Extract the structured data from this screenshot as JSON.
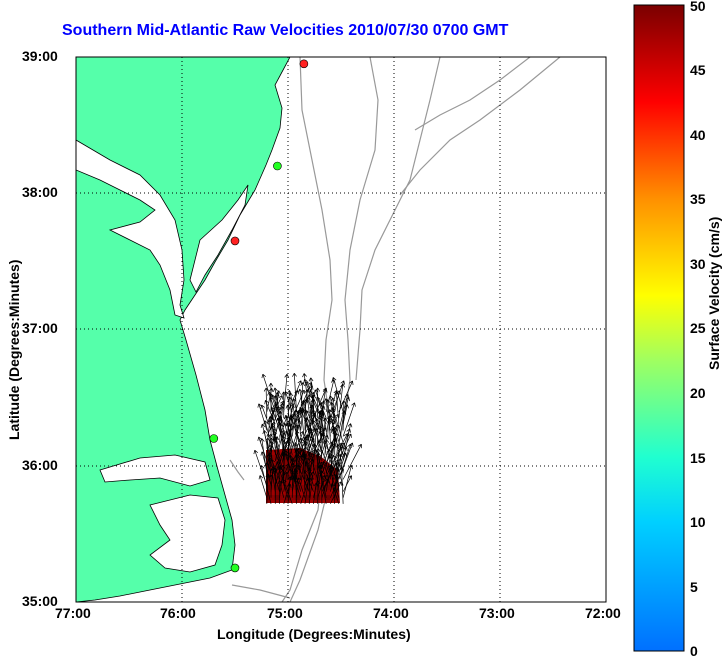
{
  "title": "Southern Mid-Atlantic Raw Velocities 2010/07/30 0700 GMT",
  "x_axis": {
    "label": "Longitude (Degrees:Minutes)",
    "ticks": [
      "77:00",
      "76:00",
      "75:00",
      "74:00",
      "73:00",
      "72:00"
    ]
  },
  "y_axis": {
    "label": "Latitude (Degrees:Minutes)",
    "ticks": [
      "39:00",
      "38:00",
      "37:00",
      "36:00",
      "35:00"
    ]
  },
  "colorbar": {
    "label": "Surface Velocity (cm/s)",
    "ticks": [
      "50",
      "45",
      "40",
      "35",
      "30",
      "25",
      "20",
      "15",
      "10",
      "5",
      "0"
    ],
    "min": 0,
    "max": 50
  },
  "map": {
    "extent": {
      "lon_min": -77.0,
      "lon_max": -72.0,
      "lat_min": 35.0,
      "lat_max": 39.0
    },
    "grid": "dotted",
    "land_color": "#55ffaa",
    "stations": [
      {
        "lon": -74.85,
        "lat": 38.95,
        "color": "#ff2222"
      },
      {
        "lon": -75.1,
        "lat": 38.2,
        "color": "#22ff22"
      },
      {
        "lon": -75.5,
        "lat": 37.65,
        "color": "#ff2222"
      },
      {
        "lon": -75.7,
        "lat": 36.2,
        "color": "#22ff22"
      },
      {
        "lon": -75.5,
        "lat": 35.25,
        "color": "#22ff22"
      }
    ],
    "velocity_field": {
      "lon_min": -75.2,
      "lon_max": -74.45,
      "lat_min": 35.72,
      "lat_max": 36.12
    }
  }
}
